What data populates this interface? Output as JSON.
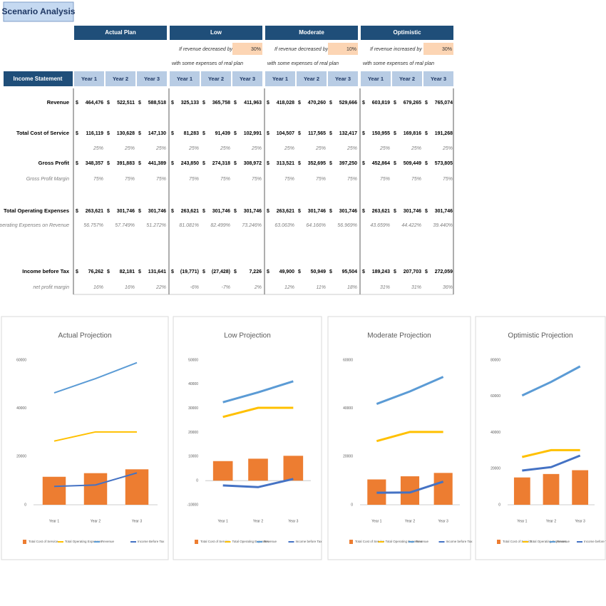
{
  "header": {
    "title": "Scenario Analysis"
  },
  "table": {
    "row_header": "Income Statement",
    "currency": "$",
    "years": [
      "Year 1",
      "Year 2",
      "Year 3"
    ],
    "scenarios": [
      {
        "name": "Actual Plan"
      },
      {
        "name": "Low",
        "note": "If revenue decreased by",
        "change": "30%",
        "note2": "with some expenses of real plan"
      },
      {
        "name": "Moderate",
        "note": "If revenue decreased by",
        "change": "10%",
        "note2": "with some expenses of real plan"
      },
      {
        "name": "Optimistic",
        "note": "If revenue increased by",
        "change": "30%",
        "note2": "with some expenses of real plan"
      }
    ],
    "rows": [
      {
        "label": "Revenue",
        "kind": "money",
        "cells": [
          "464,476",
          "522,511",
          "588,518",
          "325,133",
          "365,758",
          "411,963",
          "418,028",
          "470,260",
          "529,666",
          "603,819",
          "679,265",
          "765,074"
        ]
      },
      {
        "label": "Total Cost of Service",
        "kind": "money",
        "cells": [
          "116,119",
          "130,628",
          "147,130",
          "81,283",
          "91,439",
          "102,991",
          "104,507",
          "117,565",
          "132,417",
          "150,955",
          "169,816",
          "191,268"
        ]
      },
      {
        "kind": "pct",
        "cells": [
          "25%",
          "25%",
          "25%",
          "25%",
          "25%",
          "25%",
          "25%",
          "25%",
          "25%",
          "25%",
          "25%",
          "25%"
        ]
      },
      {
        "label": "Gross Profit",
        "kind": "money",
        "cells": [
          "348,357",
          "391,883",
          "441,389",
          "243,850",
          "274,318",
          "308,972",
          "313,521",
          "352,695",
          "397,250",
          "452,864",
          "509,449",
          "573,805"
        ]
      },
      {
        "label": "Gross Profit Margin",
        "kind": "pct",
        "cells": [
          "75%",
          "75%",
          "75%",
          "75%",
          "75%",
          "75%",
          "75%",
          "75%",
          "75%",
          "75%",
          "75%",
          "75%"
        ]
      },
      {
        "label": "Total Operating Expenses",
        "kind": "money",
        "cells": [
          "263,621",
          "301,746",
          "301,746",
          "263,621",
          "301,746",
          "301,746",
          "263,621",
          "301,746",
          "301,746",
          "263,621",
          "301,746",
          "301,746"
        ]
      },
      {
        "label": "% of Operating Expenses on Revenue",
        "kind": "pct",
        "cells": [
          "56.757%",
          "57.749%",
          "51.272%",
          "81.081%",
          "82.499%",
          "73.246%",
          "63.063%",
          "64.166%",
          "56.969%",
          "43.659%",
          "44.422%",
          "39.440%"
        ]
      },
      {
        "label": "Income before Tax",
        "kind": "money",
        "cells": [
          "76,262",
          "82,181",
          "131,641",
          "(19,771)",
          "(27,428)",
          "7,226",
          "49,900",
          "50,949",
          "95,504",
          "189,243",
          "207,703",
          "272,059"
        ]
      },
      {
        "label": "net profit margin",
        "kind": "pct",
        "cells": [
          "16%",
          "16%",
          "22%",
          "-6%",
          "-7%",
          "2%",
          "12%",
          "11%",
          "18%",
          "31%",
          "31%",
          "36%"
        ]
      }
    ]
  },
  "chart_data": [
    {
      "type": "combo",
      "title": "Actual Projection",
      "categories": [
        "Year 1",
        "Year 2",
        "Year 3"
      ],
      "ylim": [
        0,
        60000
      ],
      "yticks": [
        0,
        20000,
        40000,
        60000
      ],
      "line_width": 2,
      "series": [
        {
          "name": "Total Cost of Service",
          "mark": "bar",
          "color": "#ed7d31",
          "values": [
            11600,
            13100,
            14700
          ]
        },
        {
          "name": "Total Operating Expenses",
          "mark": "line",
          "color": "#ffc000",
          "values": [
            26400,
            30200,
            30200
          ]
        },
        {
          "name": "Revenue",
          "mark": "line",
          "color": "#5b9bd5",
          "values": [
            46400,
            52300,
            58900
          ]
        },
        {
          "name": "Income Before Tax",
          "mark": "line",
          "color": "#4472c4",
          "values": [
            7600,
            8200,
            13200
          ]
        }
      ]
    },
    {
      "type": "combo",
      "title": "Low Projection",
      "categories": [
        "Year 1",
        "Year 2",
        "Year 3"
      ],
      "ylim": [
        -10000,
        50000
      ],
      "yticks": [
        -10000,
        0,
        10000,
        20000,
        30000,
        40000,
        50000
      ],
      "line_width": 3,
      "series": [
        {
          "name": "Total Cost of Service",
          "mark": "bar",
          "color": "#ed7d31",
          "values": [
            8100,
            9100,
            10300
          ]
        },
        {
          "name": "Total Operating Expenses",
          "mark": "line",
          "color": "#ffc000",
          "values": [
            26400,
            30200,
            30200
          ]
        },
        {
          "name": "Revenue",
          "mark": "line",
          "color": "#5b9bd5",
          "values": [
            32500,
            36600,
            41200
          ]
        },
        {
          "name": "Income before Tax",
          "mark": "line",
          "color": "#4472c4",
          "values": [
            -2000,
            -2700,
            700
          ]
        }
      ]
    },
    {
      "type": "combo",
      "title": "Moderate Projection",
      "categories": [
        "Year 1",
        "Year 2",
        "Year 3"
      ],
      "ylim": [
        0,
        60000
      ],
      "yticks": [
        0,
        20000,
        40000,
        60000
      ],
      "line_width": 3,
      "series": [
        {
          "name": "Total Cost of Service",
          "mark": "bar",
          "color": "#ed7d31",
          "values": [
            10500,
            11800,
            13200
          ]
        },
        {
          "name": "Total Operating Expenses",
          "mark": "line",
          "color": "#ffc000",
          "values": [
            26400,
            30200,
            30200
          ]
        },
        {
          "name": "Revenue",
          "mark": "line",
          "color": "#5b9bd5",
          "values": [
            41800,
            47000,
            53000
          ]
        },
        {
          "name": "Income before Tax",
          "mark": "line",
          "color": "#4472c4",
          "values": [
            5000,
            5100,
            9600
          ]
        }
      ]
    },
    {
      "type": "combo",
      "title": "Optimistic Projection",
      "categories": [
        "Year 1",
        "Year 2",
        "Year 3"
      ],
      "ylim": [
        0,
        80000
      ],
      "yticks": [
        0,
        20000,
        40000,
        60000,
        80000
      ],
      "line_width": 3,
      "series": [
        {
          "name": "Total Cost of Service",
          "mark": "bar",
          "color": "#ed7d31",
          "values": [
            15100,
            17000,
            19100
          ]
        },
        {
          "name": "Total Operating Expenses",
          "mark": "line",
          "color": "#ffc000",
          "values": [
            26400,
            30200,
            30200
          ]
        },
        {
          "name": "Revenue",
          "mark": "line",
          "color": "#5b9bd5",
          "values": [
            60400,
            67900,
            76500
          ]
        },
        {
          "name": "Income before Tax",
          "mark": "line",
          "color": "#4472c4",
          "values": [
            18900,
            20800,
            27200
          ]
        }
      ]
    }
  ]
}
